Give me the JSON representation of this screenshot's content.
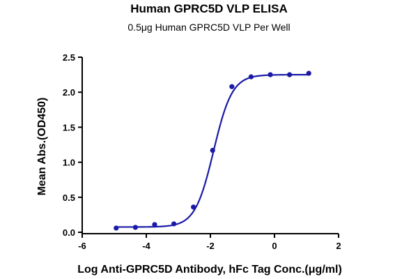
{
  "chart_data": {
    "type": "scatter",
    "title": "Human GPRC5D VLP ELISA",
    "subtitle": "0.5μg Human GPRC5D VLP Per Well",
    "xlabel": "Log Anti-GPRC5D Antibody, hFc Tag Conc.(μg/ml)",
    "ylabel": "Mean Abs.(OD450)",
    "xlim": [
      -6,
      2
    ],
    "ylim": [
      0,
      2.5
    ],
    "xticks": [
      -6,
      -4,
      -2,
      0,
      2
    ],
    "yticks": [
      0.0,
      0.5,
      1.0,
      1.5,
      2.0,
      2.5
    ],
    "xtick_labels": [
      "-6",
      "-4",
      "-2",
      "0",
      "2"
    ],
    "ytick_labels": [
      "0.0",
      "0.5",
      "1.0",
      "1.5",
      "2.0",
      "2.5"
    ],
    "grid": false,
    "color": "#1a1aa6",
    "series": [
      {
        "x": [
          -4.94,
          -4.34,
          -3.74,
          -3.14,
          -2.53,
          -1.93,
          -1.33,
          -0.73,
          -0.13,
          0.47,
          1.07
        ],
        "y": [
          0.06,
          0.07,
          0.11,
          0.12,
          0.36,
          1.17,
          2.08,
          2.22,
          2.25,
          2.25,
          2.27
        ]
      }
    ],
    "fit": {
      "bottom": 0.075,
      "top": 2.25,
      "logEC50": -1.9,
      "hill": 1.5
    }
  }
}
